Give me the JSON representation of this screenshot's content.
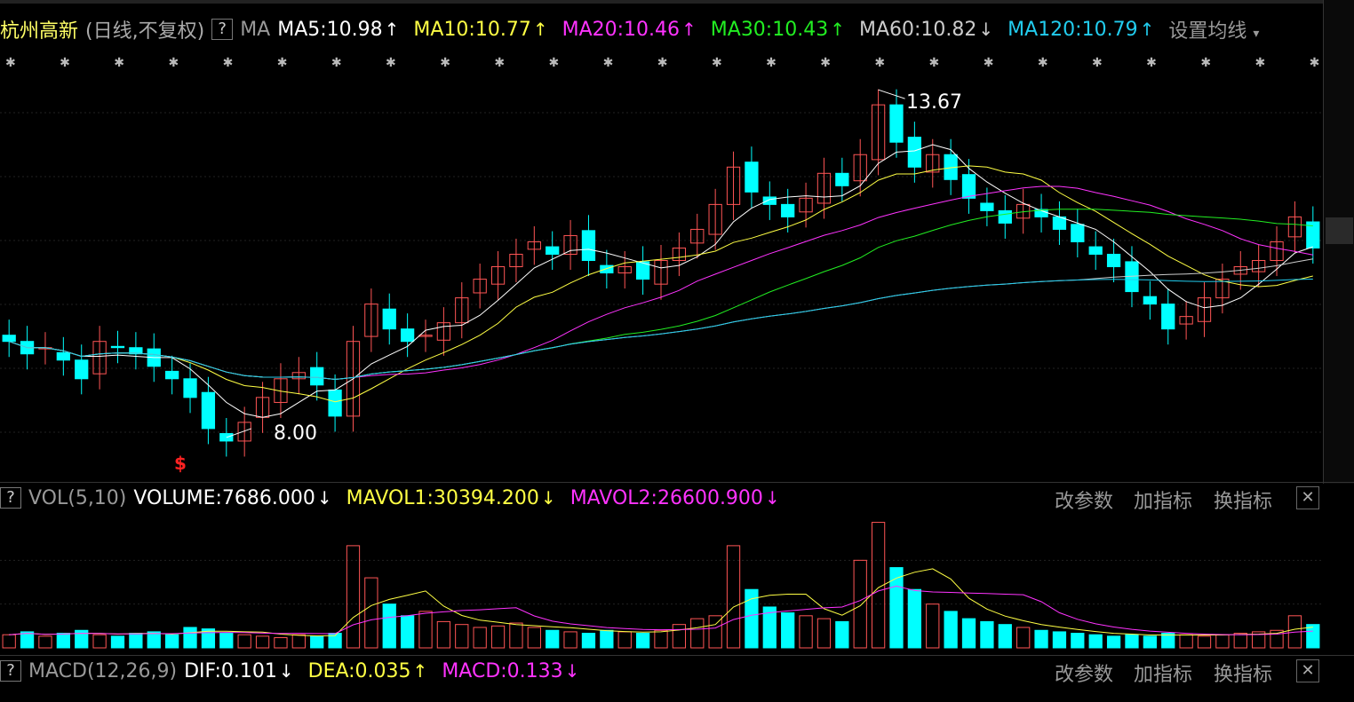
{
  "header": {
    "stock_name": "杭州高新",
    "period": "(日线,不复权)",
    "help": "?",
    "ma_label": "MA",
    "settings": "设置均线",
    "ma_values": [
      {
        "label": "MA5:10.98",
        "dir": "↑",
        "color": "#ffffff"
      },
      {
        "label": "MA10:10.77",
        "dir": "↑",
        "color": "#ffff44"
      },
      {
        "label": "MA20:10.46",
        "dir": "↑",
        "color": "#ff33ff"
      },
      {
        "label": "MA30:10.43",
        "dir": "↑",
        "color": "#22ee22"
      },
      {
        "label": "MA60:10.82",
        "dir": "↓",
        "color": "#cccccc"
      },
      {
        "label": "MA120:10.79",
        "dir": "↑",
        "color": "#22ccee"
      }
    ]
  },
  "price_chart": {
    "high_label": "13.67",
    "low_label": "8.00",
    "marker": "$",
    "colors": {
      "up": "#ff5555",
      "down": "#00ffff",
      "ma5": "#ffffff",
      "ma10": "#ffff44",
      "ma20": "#ff33ff",
      "ma30": "#22ee22",
      "ma60": "#cccccc",
      "ma120": "#22ccee"
    }
  },
  "volume_panel": {
    "help": "?",
    "name": "VOL(5,10)",
    "volume": "VOLUME:7686.000",
    "volume_dir": "↓",
    "mavol1": "MAVOL1:30394.200",
    "mavol1_dir": "↓",
    "mavol2": "MAVOL2:26600.900",
    "mavol2_dir": "↓",
    "btn_params": "改参数",
    "btn_add": "加指标",
    "btn_switch": "换指标",
    "btn_close": "✕"
  },
  "macd_panel": {
    "help": "?",
    "name": "MACD(12,26,9)",
    "dif": "DIF:0.101",
    "dif_dir": "↓",
    "dea": "DEA:0.035",
    "dea_dir": "↑",
    "macd": "MACD:0.133",
    "macd_dir": "↓",
    "btn_params": "改参数",
    "btn_add": "加指标",
    "btn_switch": "换指标",
    "btn_close": "✕"
  },
  "chart_data": {
    "type": "candlestick",
    "title": "杭州高新 (日线,不复权)",
    "y_range": [
      8.0,
      13.67
    ],
    "highest": 13.67,
    "lowest": 8.0,
    "series_ma": {
      "MA5": 10.98,
      "MA10": 10.77,
      "MA20": 10.46,
      "MA30": 10.43,
      "MA60": 10.82,
      "MA120": 10.79
    },
    "closes": [
      9.6,
      9.4,
      9.5,
      9.3,
      9.0,
      9.6,
      9.5,
      9.4,
      9.2,
      9.0,
      8.7,
      8.2,
      8.0,
      8.3,
      8.7,
      9.0,
      9.1,
      8.9,
      8.4,
      9.6,
      10.2,
      9.8,
      9.6,
      9.7,
      9.9,
      10.3,
      10.6,
      10.8,
      11.0,
      11.2,
      11.0,
      11.3,
      10.9,
      10.7,
      10.8,
      10.6,
      10.9,
      11.1,
      11.4,
      11.8,
      12.4,
      12.0,
      11.8,
      11.6,
      11.9,
      12.3,
      12.1,
      12.6,
      13.4,
      12.8,
      12.4,
      12.6,
      12.2,
      11.9,
      11.7,
      11.5,
      11.8,
      11.6,
      11.4,
      11.2,
      11.0,
      10.8,
      10.4,
      10.2,
      9.8,
      10.0,
      10.3,
      10.6,
      10.8,
      10.9,
      11.2,
      11.6,
      11.1
    ],
    "volumes": [
      9,
      11,
      8,
      10,
      12,
      9,
      8,
      10,
      11,
      9,
      14,
      13,
      10,
      9,
      8,
      7,
      9,
      8,
      10,
      70,
      48,
      30,
      22,
      25,
      18,
      16,
      14,
      15,
      17,
      14,
      12,
      11,
      10,
      12,
      11,
      10,
      12,
      16,
      20,
      22,
      70,
      40,
      28,
      24,
      22,
      20,
      18,
      60,
      86,
      55,
      40,
      30,
      25,
      20,
      18,
      16,
      14,
      12,
      11,
      10,
      9,
      8,
      9,
      8,
      10,
      9,
      8,
      9,
      10,
      11,
      12,
      22,
      16
    ],
    "mavol1": 30394.2,
    "mavol2": 26600.9,
    "volume": 7686.0,
    "macd": {
      "DIF": 0.101,
      "DEA": 0.035,
      "MACD": 0.133
    }
  }
}
